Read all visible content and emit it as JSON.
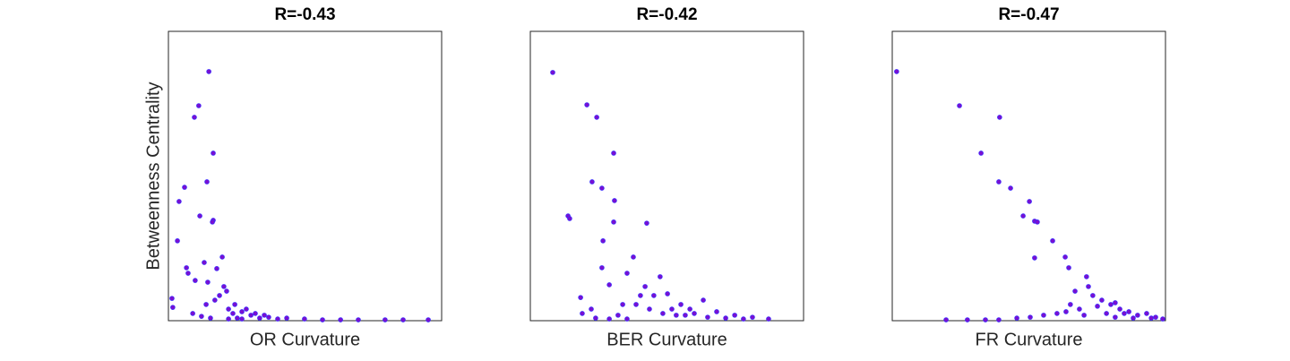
{
  "chart_data": [
    {
      "type": "scatter",
      "title": "R=-0.43",
      "xlabel": "OR Curvature",
      "ylabel": "Betweenness Centrality",
      "xlim": [
        0,
        1
      ],
      "ylim": [
        0,
        1
      ],
      "color": "#7a0fd0",
      "edgecolor": "#3a2cff",
      "x": [
        0.148,
        0.111,
        0.095,
        0.164,
        0.141,
        0.059,
        0.039,
        0.115,
        0.164,
        0.161,
        0.033,
        0.197,
        0.131,
        0.066,
        0.072,
        0.098,
        0.013,
        0.016,
        0.089,
        0.138,
        0.187,
        0.203,
        0.17,
        0.22,
        0.236,
        0.252,
        0.269,
        0.302,
        0.334,
        0.367,
        0.4,
        0.433,
        0.498,
        0.564,
        0.63,
        0.695,
        0.793,
        0.859,
        0.951,
        0.144,
        0.177,
        0.213,
        0.243,
        0.285,
        0.318,
        0.351,
        0.121,
        0.154,
        0.22,
        0.269
      ],
      "y": [
        0.861,
        0.743,
        0.703,
        0.579,
        0.48,
        0.461,
        0.412,
        0.362,
        0.347,
        0.341,
        0.276,
        0.22,
        0.201,
        0.183,
        0.164,
        0.139,
        0.077,
        0.046,
        0.025,
        0.056,
        0.087,
        0.118,
        0.071,
        0.04,
        0.025,
        0.009,
        0.031,
        0.019,
        0.009,
        0.012,
        0.006,
        0.009,
        0.006,
        0.003,
        0.003,
        0.003,
        0.003,
        0.003,
        0.003,
        0.133,
        0.18,
        0.102,
        0.056,
        0.04,
        0.025,
        0.019,
        0.015,
        0.009,
        0.006,
        0.006
      ]
    },
    {
      "type": "scatter",
      "title": "R=-0.42",
      "xlabel": "BER Curvature",
      "xlim": [
        0,
        1
      ],
      "ylim": [
        0,
        1
      ],
      "color": "#7a0fd0",
      "edgecolor": "#3a2cff",
      "x": [
        0.082,
        0.207,
        0.243,
        0.305,
        0.226,
        0.262,
        0.308,
        0.138,
        0.144,
        0.426,
        0.305,
        0.266,
        0.377,
        0.475,
        0.262,
        0.289,
        0.184,
        0.354,
        0.42,
        0.452,
        0.502,
        0.551,
        0.584,
        0.633,
        0.682,
        0.748,
        0.813,
        0.872,
        0.19,
        0.223,
        0.239,
        0.321,
        0.387,
        0.436,
        0.485,
        0.534,
        0.6,
        0.649,
        0.715,
        0.78,
        0.354,
        0.289,
        0.518,
        0.403,
        0.338,
        0.567
      ],
      "y": [
        0.858,
        0.746,
        0.703,
        0.579,
        0.48,
        0.458,
        0.415,
        0.362,
        0.353,
        0.337,
        0.341,
        0.276,
        0.22,
        0.152,
        0.183,
        0.124,
        0.08,
        0.164,
        0.118,
        0.087,
        0.093,
        0.056,
        0.04,
        0.071,
        0.031,
        0.019,
        0.012,
        0.006,
        0.025,
        0.04,
        0.009,
        0.019,
        0.056,
        0.04,
        0.025,
        0.019,
        0.025,
        0.012,
        0.009,
        0.006,
        0.006,
        0.006,
        0.04,
        0.087,
        0.056,
        0.019
      ]
    },
    {
      "type": "scatter",
      "title": "R=-0.47",
      "xlabel": "FR Curvature",
      "xlim": [
        0,
        1
      ],
      "ylim": [
        0,
        1
      ],
      "color": "#7a0fd0",
      "edgecolor": "#3a2cff",
      "x": [
        0.016,
        0.246,
        0.393,
        0.325,
        0.39,
        0.433,
        0.502,
        0.479,
        0.521,
        0.531,
        0.587,
        0.633,
        0.521,
        0.646,
        0.711,
        0.718,
        0.669,
        0.734,
        0.767,
        0.8,
        0.833,
        0.866,
        0.898,
        0.948,
        0.99,
        0.197,
        0.275,
        0.341,
        0.39,
        0.456,
        0.505,
        0.554,
        0.603,
        0.636,
        0.685,
        0.751,
        0.816,
        0.849,
        0.882,
        0.784,
        0.702,
        0.652,
        0.931,
        0.964,
        0.816
      ],
      "y": [
        0.861,
        0.743,
        0.703,
        0.579,
        0.48,
        0.458,
        0.412,
        0.362,
        0.344,
        0.341,
        0.276,
        0.22,
        0.217,
        0.183,
        0.152,
        0.118,
        0.102,
        0.087,
        0.071,
        0.056,
        0.04,
        0.031,
        0.019,
        0.009,
        0.006,
        0.003,
        0.003,
        0.003,
        0.003,
        0.009,
        0.012,
        0.019,
        0.025,
        0.031,
        0.04,
        0.05,
        0.062,
        0.025,
        0.009,
        0.025,
        0.019,
        0.056,
        0.025,
        0.012,
        0.012
      ]
    }
  ]
}
